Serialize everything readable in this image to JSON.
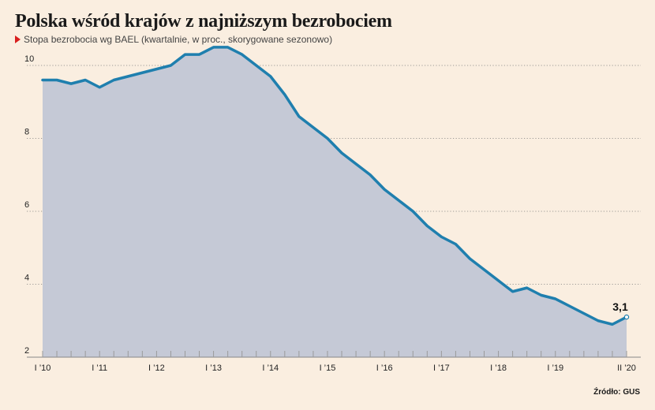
{
  "title": "Polska wśród krajów z najniższym bezrobociem",
  "subtitle": "Stopa bezrobocia wg BAEL (kwartalnie, w proc., skorygowane sezonowo)",
  "source": "Źródło: GUS",
  "colors": {
    "line": "#1f7fae",
    "area": "#c5c9d6",
    "background": "#faeee0",
    "marker": "#d81e1e"
  },
  "chart_data": {
    "type": "area",
    "title": "Polska wśród krajów z najniższym bezrobociem",
    "subtitle": "Stopa bezrobocia wg BAEL (kwartalnie, w proc., skorygowane sezonowo)",
    "xlabel": "",
    "ylabel": "",
    "ylim": [
      2,
      10.5
    ],
    "yticks": [
      2,
      4,
      6,
      8,
      10
    ],
    "grid": "horizontal-dotted",
    "x": [
      "I'10",
      "II'10",
      "III'10",
      "IV'10",
      "I'11",
      "II'11",
      "III'11",
      "IV'11",
      "I'12",
      "II'12",
      "III'12",
      "IV'12",
      "I'13",
      "II'13",
      "III'13",
      "IV'13",
      "I'14",
      "II'14",
      "III'14",
      "IV'14",
      "I'15",
      "II'15",
      "III'15",
      "IV'15",
      "I'16",
      "II'16",
      "III'16",
      "IV'16",
      "I'17",
      "II'17",
      "III'17",
      "IV'17",
      "I'18",
      "II'18",
      "III'18",
      "IV'18",
      "I'19",
      "II'19",
      "III'19",
      "IV'19",
      "I'20",
      "II'20"
    ],
    "xtick_labels": [
      {
        "index": 0,
        "label": "I ’10"
      },
      {
        "index": 4,
        "label": "I ’11"
      },
      {
        "index": 8,
        "label": "I ’12"
      },
      {
        "index": 12,
        "label": "I ’13"
      },
      {
        "index": 16,
        "label": "I ’14"
      },
      {
        "index": 20,
        "label": "I ’15"
      },
      {
        "index": 24,
        "label": "I ’16"
      },
      {
        "index": 28,
        "label": "I ’17"
      },
      {
        "index": 32,
        "label": "I ’18"
      },
      {
        "index": 36,
        "label": "I ’19"
      },
      {
        "index": 41,
        "label": "II ’20"
      }
    ],
    "series": [
      {
        "values": [
          9.6,
          9.6,
          9.5,
          9.6,
          9.4,
          9.6,
          9.7,
          9.8,
          9.9,
          10.0,
          10.3,
          10.3,
          10.5,
          10.5,
          10.3,
          10.0,
          9.7,
          9.2,
          8.6,
          8.3,
          8.0,
          7.6,
          7.3,
          7.0,
          6.6,
          6.3,
          6.0,
          5.6,
          5.3,
          5.1,
          4.7,
          4.4,
          4.1,
          3.8,
          3.9,
          3.7,
          3.6,
          3.4,
          3.2,
          3.0,
          2.9,
          3.1
        ]
      }
    ],
    "annotations": [
      {
        "index": 41,
        "text": "3,1"
      }
    ]
  }
}
